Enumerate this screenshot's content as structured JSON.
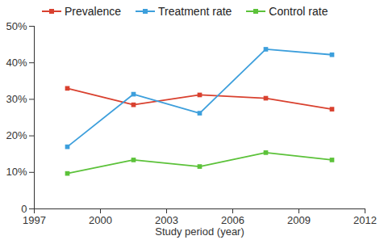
{
  "chart_data": {
    "type": "line",
    "x_label": "Study period (year)",
    "x": [
      1998.5,
      2001.5,
      2004.5,
      2007.5,
      2010.5
    ],
    "xlim": [
      1997,
      2012
    ],
    "xticks": [
      1997,
      2000,
      2003,
      2006,
      2009,
      2012
    ],
    "ylim": [
      0,
      50
    ],
    "yticks": [
      0,
      {
        "value": 10,
        "label": "10%"
      },
      {
        "value": 20,
        "label": "20%"
      },
      {
        "value": 30,
        "label": "30%"
      },
      {
        "value": 40,
        "label": "40%"
      },
      {
        "value": 50,
        "label": "50%"
      }
    ],
    "grid": false,
    "legend": "top",
    "marker": "square",
    "line_style": "solid",
    "series": [
      {
        "name": "Prevalence",
        "color": "#d9412f",
        "values": [
          33.0,
          28.5,
          31.2,
          30.3,
          27.3
        ]
      },
      {
        "name": "Treatment rate",
        "color": "#3d9fdc",
        "values": [
          17.0,
          31.4,
          26.2,
          43.7,
          42.2
        ]
      },
      {
        "name": "Control rate",
        "color": "#5cc23a",
        "values": [
          9.7,
          13.4,
          11.6,
          15.4,
          13.4
        ]
      }
    ]
  }
}
